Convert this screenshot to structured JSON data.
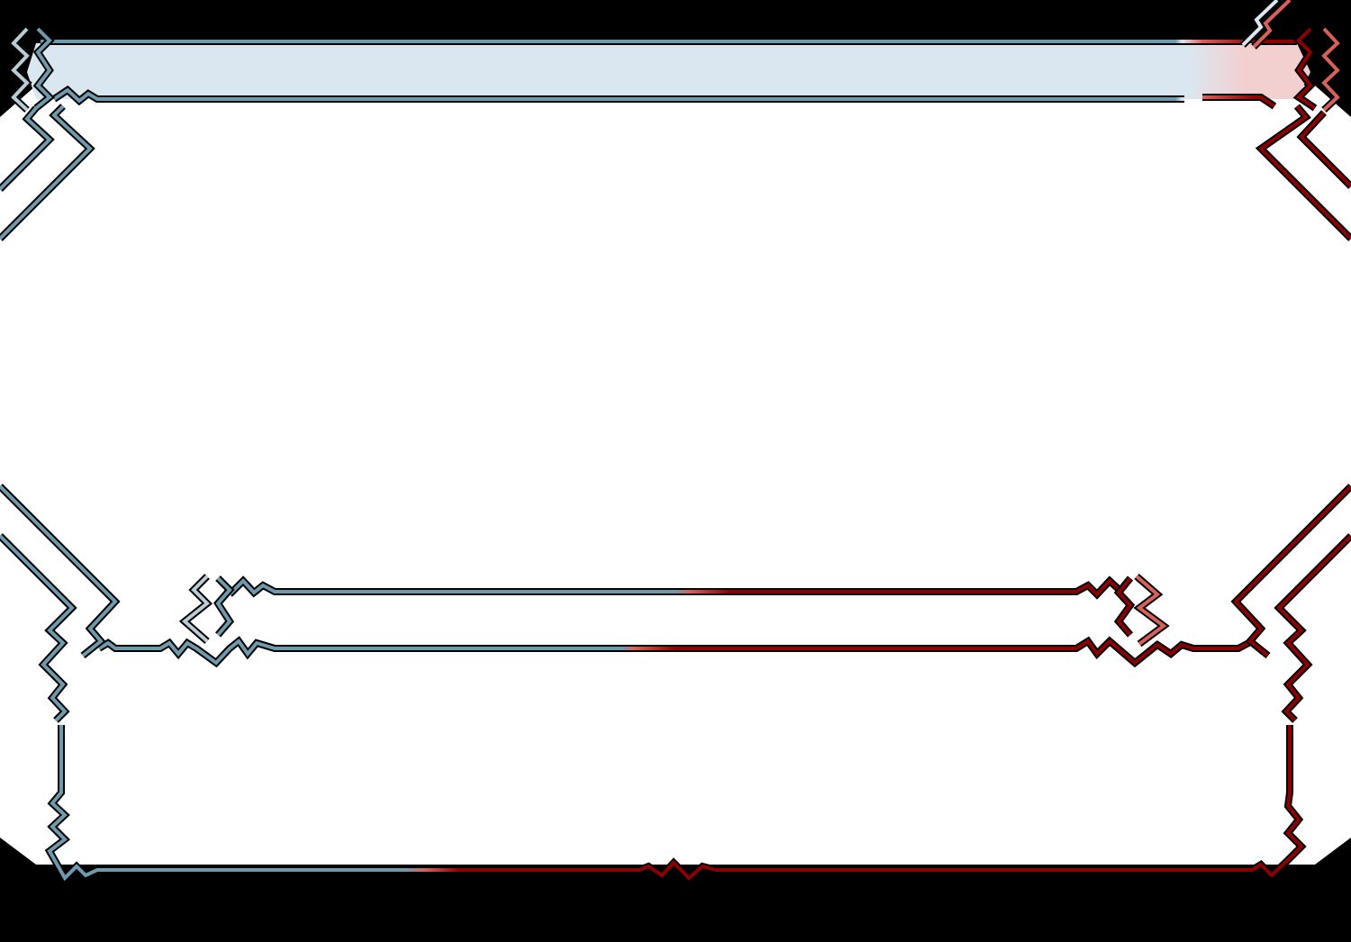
{
  "theme": {
    "left_color": "#6f9aae",
    "left_light": "#b8ccd6",
    "left_fill": "#dbe7f0",
    "right_color": "#8b0000",
    "right_light": "#d9605a",
    "right_fill": "#f2d0d0",
    "background": "#ffffff",
    "outside": "#000000"
  },
  "frame": {
    "top_bar_label": "",
    "middle_panel_label": "",
    "bottom_panel_label": ""
  }
}
